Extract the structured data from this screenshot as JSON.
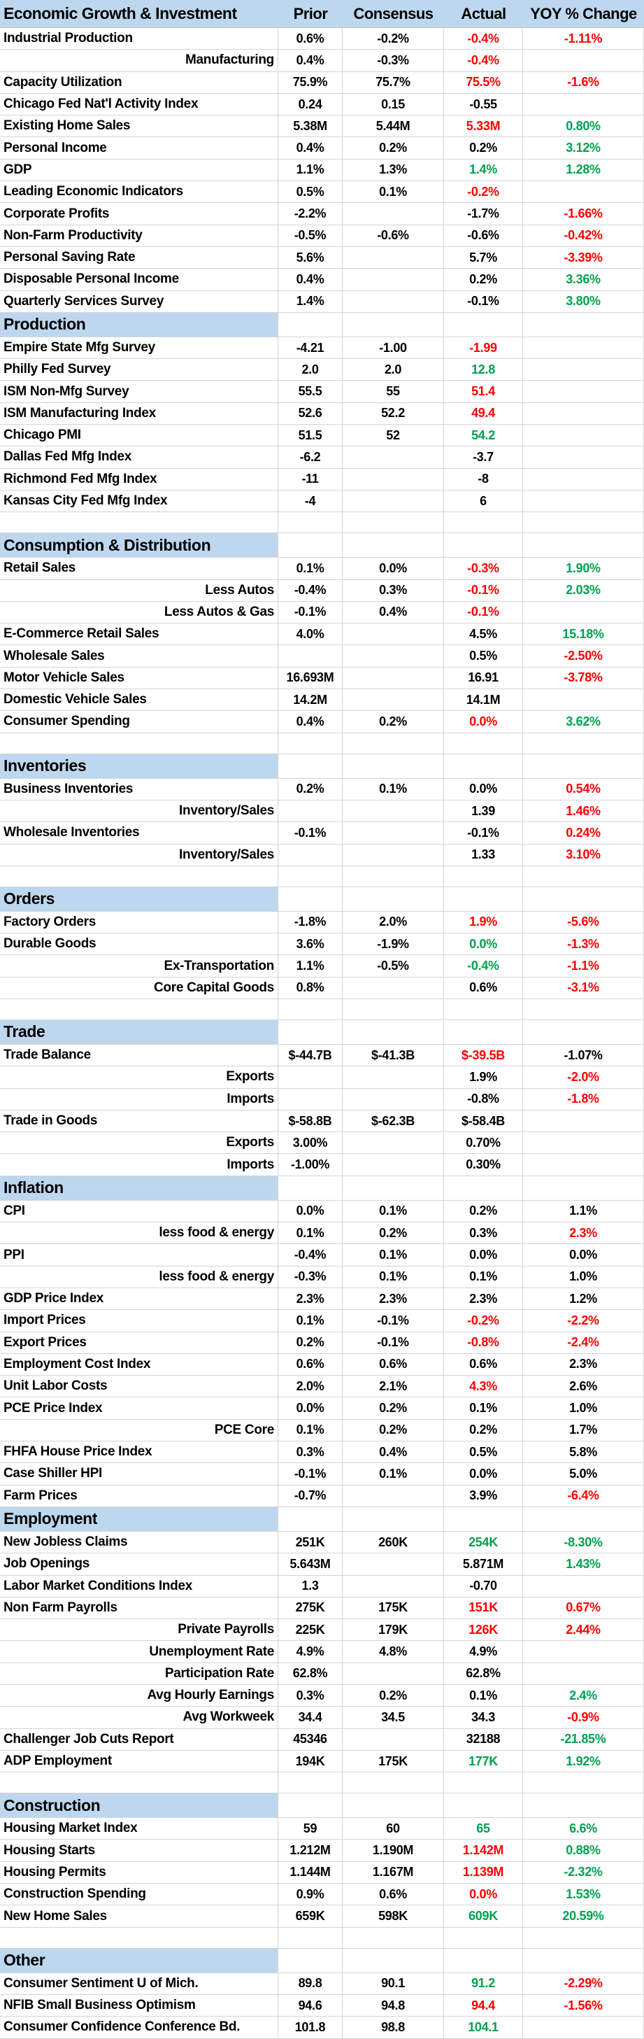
{
  "table": {
    "title": "Economic Growth & Investment",
    "colors": {
      "header_bg": "#bdd7ee",
      "section_bg": "#bdd7ee",
      "negative_text": "#ff0000",
      "positive_text": "#00a14f",
      "default_text": "#000000",
      "gridline": "#d4d4d4"
    },
    "header": {
      "label": "Economic Growth & Investment",
      "prior": "Prior",
      "consensus": "Consensus",
      "actual": "Actual",
      "yoy": "YOY % Change"
    },
    "rows": [
      {
        "t": "d",
        "l": "Industrial Production",
        "p": "0.6%",
        "c": "-0.2%",
        "a": "-0.4%",
        "ac": "r",
        "y": "-1.11%",
        "yc": "r"
      },
      {
        "t": "d",
        "l": "Manufacturing",
        "r": true,
        "p": "0.4%",
        "c": "-0.3%",
        "a": "-0.4%",
        "ac": "r",
        "y": ""
      },
      {
        "t": "d",
        "l": "Capacity Utilization",
        "p": "75.9%",
        "c": "75.7%",
        "a": "75.5%",
        "ac": "r",
        "y": "-1.6%",
        "yc": "r"
      },
      {
        "t": "d",
        "l": "Chicago Fed Nat'l Activity Index",
        "p": "0.24",
        "c": "0.15",
        "a": "-0.55",
        "y": ""
      },
      {
        "t": "d",
        "l": "Existing Home Sales",
        "p": "5.38M",
        "c": "5.44M",
        "a": "5.33M",
        "ac": "r",
        "y": "0.80%",
        "yc": "g"
      },
      {
        "t": "d",
        "l": "Personal Income",
        "p": "0.4%",
        "c": "0.2%",
        "a": "0.2%",
        "y": "3.12%",
        "yc": "g"
      },
      {
        "t": "d",
        "l": "GDP",
        "p": "1.1%",
        "c": "1.3%",
        "a": "1.4%",
        "ac": "g",
        "y": "1.28%",
        "yc": "g"
      },
      {
        "t": "d",
        "l": "Leading Economic Indicators",
        "p": "0.5%",
        "c": "0.1%",
        "a": "-0.2%",
        "ac": "r",
        "y": ""
      },
      {
        "t": "d",
        "l": "Corporate Profits",
        "p": "-2.2%",
        "c": "",
        "a": "-1.7%",
        "y": "-1.66%",
        "yc": "r"
      },
      {
        "t": "d",
        "l": "Non-Farm Productivity",
        "p": "-0.5%",
        "c": "-0.6%",
        "a": "-0.6%",
        "y": "-0.42%",
        "yc": "r"
      },
      {
        "t": "d",
        "l": "Personal Saving Rate",
        "p": "5.6%",
        "c": "",
        "a": "5.7%",
        "y": "-3.39%",
        "yc": "r"
      },
      {
        "t": "d",
        "l": "Disposable Personal Income",
        "p": "0.4%",
        "c": "",
        "a": "0.2%",
        "y": "3.36%",
        "yc": "g"
      },
      {
        "t": "d",
        "l": "Quarterly Services Survey",
        "p": "1.4%",
        "c": "",
        "a": "-0.1%",
        "y": "3.80%",
        "yc": "g"
      },
      {
        "t": "s",
        "l": "Production"
      },
      {
        "t": "d",
        "l": "Empire State Mfg Survey",
        "p": "-4.21",
        "c": "-1.00",
        "a": "-1.99",
        "ac": "r",
        "y": ""
      },
      {
        "t": "d",
        "l": "Philly Fed Survey",
        "p": "2.0",
        "c": "2.0",
        "a": "12.8",
        "ac": "g",
        "y": ""
      },
      {
        "t": "d",
        "l": "ISM Non-Mfg Survey",
        "p": "55.5",
        "c": "55",
        "a": "51.4",
        "ac": "r",
        "y": ""
      },
      {
        "t": "d",
        "l": "ISM Manufacturing Index",
        "p": "52.6",
        "c": "52.2",
        "a": "49.4",
        "ac": "r",
        "y": ""
      },
      {
        "t": "d",
        "l": "Chicago PMI",
        "p": "51.5",
        "c": "52",
        "a": "54.2",
        "ac": "g",
        "y": ""
      },
      {
        "t": "d",
        "l": "Dallas Fed Mfg Index",
        "p": "-6.2",
        "c": "",
        "a": "-3.7",
        "y": ""
      },
      {
        "t": "d",
        "l": "Richmond Fed Mfg Index",
        "p": "-11",
        "c": "",
        "a": "-8",
        "y": ""
      },
      {
        "t": "d",
        "l": "Kansas City Fed Mfg Index",
        "p": "-4",
        "c": "",
        "a": "6",
        "y": ""
      },
      {
        "t": "sp"
      },
      {
        "t": "s",
        "l": "Consumption & Distribution"
      },
      {
        "t": "d",
        "l": "Retail Sales",
        "p": "0.1%",
        "c": "0.0%",
        "a": "-0.3%",
        "ac": "r",
        "y": "1.90%",
        "yc": "g"
      },
      {
        "t": "d",
        "l": "Less Autos",
        "r": true,
        "p": "-0.4%",
        "c": "0.3%",
        "a": "-0.1%",
        "ac": "r",
        "y": "2.03%",
        "yc": "g"
      },
      {
        "t": "d",
        "l": "Less Autos & Gas",
        "r": true,
        "p": "-0.1%",
        "c": "0.4%",
        "a": "-0.1%",
        "ac": "r",
        "y": ""
      },
      {
        "t": "d",
        "l": "E-Commerce Retail Sales",
        "p": "4.0%",
        "c": "",
        "a": "4.5%",
        "y": "15.18%",
        "yc": "g"
      },
      {
        "t": "d",
        "l": "Wholesale Sales",
        "p": "",
        "c": "",
        "a": "0.5%",
        "y": "-2.50%",
        "yc": "r"
      },
      {
        "t": "d",
        "l": "Motor Vehicle Sales",
        "p": "16.693M",
        "c": "",
        "a": "16.91",
        "y": "-3.78%",
        "yc": "r"
      },
      {
        "t": "d",
        "l": "Domestic Vehicle Sales",
        "p": "14.2M",
        "c": "",
        "a": "14.1M",
        "y": ""
      },
      {
        "t": "d",
        "l": "Consumer Spending",
        "p": "0.4%",
        "c": "0.2%",
        "a": "0.0%",
        "ac": "r",
        "y": "3.62%",
        "yc": "g"
      },
      {
        "t": "sp"
      },
      {
        "t": "s",
        "l": "Inventories"
      },
      {
        "t": "d",
        "l": "Business Inventories",
        "p": "0.2%",
        "c": "0.1%",
        "a": "0.0%",
        "y": "0.54%",
        "yc": "r"
      },
      {
        "t": "d",
        "l": "Inventory/Sales",
        "r": true,
        "p": "",
        "c": "",
        "a": "1.39",
        "y": "1.46%",
        "yc": "r"
      },
      {
        "t": "d",
        "l": "Wholesale Inventories",
        "p": "-0.1%",
        "c": "",
        "a": "-0.1%",
        "y": "0.24%",
        "yc": "r"
      },
      {
        "t": "d",
        "l": "Inventory/Sales",
        "r": true,
        "p": "",
        "c": "",
        "a": "1.33",
        "y": "3.10%",
        "yc": "r"
      },
      {
        "t": "sp"
      },
      {
        "t": "s",
        "l": "Orders"
      },
      {
        "t": "d",
        "l": "Factory Orders",
        "p": "-1.8%",
        "c": "2.0%",
        "a": "1.9%",
        "ac": "r",
        "y": "-5.6%",
        "yc": "r"
      },
      {
        "t": "d",
        "l": "Durable Goods",
        "p": "3.6%",
        "c": "-1.9%",
        "a": "0.0%",
        "ac": "g",
        "y": "-1.3%",
        "yc": "r"
      },
      {
        "t": "d",
        "l": "Ex-Transportation",
        "r": true,
        "p": "1.1%",
        "c": "-0.5%",
        "a": "-0.4%",
        "ac": "g",
        "y": "-1.1%",
        "yc": "r"
      },
      {
        "t": "d",
        "l": "Core Capital Goods",
        "r": true,
        "p": "0.8%",
        "c": "",
        "a": "0.6%",
        "y": "-3.1%",
        "yc": "r"
      },
      {
        "t": "sp"
      },
      {
        "t": "s",
        "l": "Trade"
      },
      {
        "t": "d",
        "l": "Trade Balance",
        "p": "$-44.7B",
        "c": "$-41.3B",
        "a": "$-39.5B",
        "ac": "r",
        "y": "-1.07%"
      },
      {
        "t": "d",
        "l": "Exports",
        "r": true,
        "p": "",
        "c": "",
        "a": "1.9%",
        "y": "-2.0%",
        "yc": "r"
      },
      {
        "t": "d",
        "l": "Imports",
        "r": true,
        "p": "",
        "c": "",
        "a": "-0.8%",
        "y": "-1.8%",
        "yc": "r"
      },
      {
        "t": "d",
        "l": "Trade in Goods",
        "p": "$-58.8B",
        "c": "$-62.3B",
        "a": "$-58.4B",
        "y": ""
      },
      {
        "t": "d",
        "l": "Exports",
        "r": true,
        "p": "3.00%",
        "c": "",
        "a": "0.70%",
        "y": ""
      },
      {
        "t": "d",
        "l": "Imports",
        "r": true,
        "p": "-1.00%",
        "c": "",
        "a": "0.30%",
        "y": ""
      },
      {
        "t": "s",
        "l": "Inflation"
      },
      {
        "t": "d",
        "l": "CPI",
        "p": "0.0%",
        "c": "0.1%",
        "a": "0.2%",
        "y": "1.1%"
      },
      {
        "t": "d",
        "l": "less food & energy",
        "r": true,
        "p": "0.1%",
        "c": "0.2%",
        "a": "0.3%",
        "y": "2.3%",
        "yc": "r"
      },
      {
        "t": "d",
        "l": "PPI",
        "p": "-0.4%",
        "c": "0.1%",
        "a": "0.0%",
        "y": "0.0%"
      },
      {
        "t": "d",
        "l": "less food & energy",
        "r": true,
        "p": "-0.3%",
        "c": "0.1%",
        "a": "0.1%",
        "y": "1.0%"
      },
      {
        "t": "d",
        "l": "GDP Price Index",
        "p": "2.3%",
        "c": "2.3%",
        "a": "2.3%",
        "y": "1.2%"
      },
      {
        "t": "d",
        "l": "Import Prices",
        "p": "0.1%",
        "c": "-0.1%",
        "a": "-0.2%",
        "ac": "r",
        "y": "-2.2%",
        "yc": "r"
      },
      {
        "t": "d",
        "l": "Export Prices",
        "p": "0.2%",
        "c": "-0.1%",
        "a": "-0.8%",
        "ac": "r",
        "y": "-2.4%",
        "yc": "r"
      },
      {
        "t": "d",
        "l": "Employment Cost Index",
        "p": "0.6%",
        "c": "0.6%",
        "a": "0.6%",
        "y": "2.3%"
      },
      {
        "t": "d",
        "l": "Unit Labor Costs",
        "p": "2.0%",
        "c": "2.1%",
        "a": "4.3%",
        "ac": "r",
        "y": "2.6%"
      },
      {
        "t": "d",
        "l": "PCE Price Index",
        "p": "0.0%",
        "c": "0.2%",
        "a": "0.1%",
        "y": "1.0%"
      },
      {
        "t": "d",
        "l": "PCE Core",
        "r": true,
        "p": "0.1%",
        "c": "0.2%",
        "a": "0.2%",
        "y": "1.7%"
      },
      {
        "t": "d",
        "l": "FHFA House Price Index",
        "p": "0.3%",
        "c": "0.4%",
        "a": "0.5%",
        "y": "5.8%"
      },
      {
        "t": "d",
        "l": "Case Shiller HPI",
        "p": "-0.1%",
        "c": "0.1%",
        "a": "0.0%",
        "y": "5.0%"
      },
      {
        "t": "d",
        "l": "Farm Prices",
        "p": "-0.7%",
        "c": "",
        "a": "3.9%",
        "y": "-6.4%",
        "yc": "r"
      },
      {
        "t": "s",
        "l": "Employment"
      },
      {
        "t": "d",
        "l": "New Jobless Claims",
        "p": "251K",
        "c": "260K",
        "a": "254K",
        "ac": "g",
        "y": "-8.30%",
        "yc": "g"
      },
      {
        "t": "d",
        "l": "Job Openings",
        "p": "5.643M",
        "c": "",
        "a": "5.871M",
        "y": "1.43%",
        "yc": "g"
      },
      {
        "t": "d",
        "l": "Labor Market Conditions Index",
        "p": "1.3",
        "c": "",
        "a": "-0.70",
        "y": ""
      },
      {
        "t": "d",
        "l": "Non Farm Payrolls",
        "p": "275K",
        "c": "175K",
        "a": "151K",
        "ac": "r",
        "y": "0.67%",
        "yc": "r"
      },
      {
        "t": "d",
        "l": "Private Payrolls",
        "r": true,
        "p": "225K",
        "c": "179K",
        "a": "126K",
        "ac": "r",
        "y": "2.44%",
        "yc": "r"
      },
      {
        "t": "d",
        "l": "Unemployment Rate",
        "r": true,
        "p": "4.9%",
        "c": "4.8%",
        "a": "4.9%",
        "y": ""
      },
      {
        "t": "d",
        "l": "Participation Rate",
        "r": true,
        "p": "62.8%",
        "c": "",
        "a": "62.8%",
        "y": ""
      },
      {
        "t": "d",
        "l": "Avg Hourly Earnings",
        "r": true,
        "p": "0.3%",
        "c": "0.2%",
        "a": "0.1%",
        "y": "2.4%",
        "yc": "g"
      },
      {
        "t": "d",
        "l": "Avg Workweek",
        "r": true,
        "p": "34.4",
        "c": "34.5",
        "a": "34.3",
        "y": "-0.9%",
        "yc": "r"
      },
      {
        "t": "d",
        "l": "Challenger Job Cuts Report",
        "p": "45346",
        "c": "",
        "a": "32188",
        "y": "-21.85%",
        "yc": "g"
      },
      {
        "t": "d",
        "l": "ADP Employment",
        "p": "194K",
        "c": "175K",
        "a": "177K",
        "ac": "g",
        "y": "1.92%",
        "yc": "g"
      },
      {
        "t": "sp"
      },
      {
        "t": "s",
        "l": "Construction"
      },
      {
        "t": "d",
        "l": "Housing Market Index",
        "p": "59",
        "c": "60",
        "a": "65",
        "ac": "g",
        "y": "6.6%",
        "yc": "g"
      },
      {
        "t": "d",
        "l": "Housing Starts",
        "p": "1.212M",
        "c": "1.190M",
        "a": "1.142M",
        "ac": "r",
        "y": "0.88%",
        "yc": "g"
      },
      {
        "t": "d",
        "l": "Housing Permits",
        "p": "1.144M",
        "c": "1.167M",
        "a": "1.139M",
        "ac": "r",
        "y": "-2.32%",
        "yc": "g"
      },
      {
        "t": "d",
        "l": "Construction Spending",
        "p": "0.9%",
        "c": "0.6%",
        "a": "0.0%",
        "ac": "r",
        "y": "1.53%",
        "yc": "g"
      },
      {
        "t": "d",
        "l": "New Home Sales",
        "p": "659K",
        "c": "598K",
        "a": "609K",
        "ac": "g",
        "y": "20.59%",
        "yc": "g"
      },
      {
        "t": "sp"
      },
      {
        "t": "s",
        "l": "Other"
      },
      {
        "t": "d",
        "l": "Consumer Sentiment U of Mich.",
        "p": "89.8",
        "c": "90.1",
        "a": "91.2",
        "ac": "g",
        "y": "-2.29%",
        "yc": "r"
      },
      {
        "t": "d",
        "l": "NFIB Small Business Optimism",
        "p": "94.6",
        "c": "94.8",
        "a": "94.4",
        "ac": "r",
        "y": "-1.56%",
        "yc": "r"
      },
      {
        "t": "d",
        "l": "Consumer Confidence Conference Bd.",
        "p": "101.8",
        "c": "98.8",
        "a": "104.1",
        "ac": "g",
        "y": ""
      }
    ]
  }
}
